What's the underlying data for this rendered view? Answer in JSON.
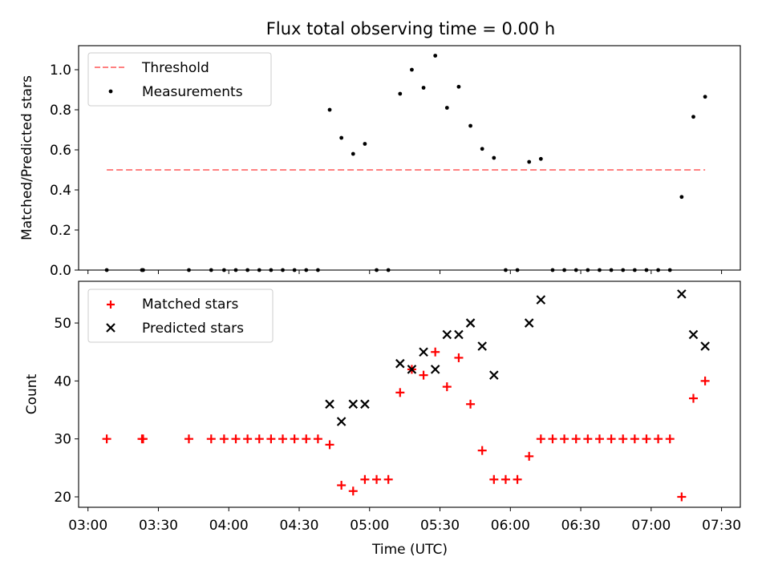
{
  "figure": {
    "title": "Flux total observing time = 0.00 h"
  },
  "chart_data": [
    {
      "type": "scatter",
      "panel": "top",
      "ylabel": "Matched/Predicted stars",
      "xlabel": "",
      "x_unit": "minutes after 03:00 UTC",
      "ylim": [
        0.0,
        1.12
      ],
      "yticks": [
        0.0,
        0.2,
        0.4,
        0.6,
        0.8,
        1.0
      ],
      "ytick_labels": [
        "0.0",
        "0.2",
        "0.4",
        "0.6",
        "0.8",
        "1.0"
      ],
      "legend_position": "upper-left",
      "threshold": {
        "name": "Threshold",
        "value": 0.5,
        "x_range": [
          8,
          263
        ],
        "color": "#ff8080",
        "style": "dashed"
      },
      "series": [
        {
          "name": "Measurements",
          "marker": "dot",
          "color": "#000000",
          "points": [
            [
              8,
              0.0
            ],
            [
              23,
              0.0
            ],
            [
              23.5,
              0.0
            ],
            [
              43,
              0.0
            ],
            [
              52.5,
              0.0
            ],
            [
              58,
              0.0
            ],
            [
              63,
              0.0
            ],
            [
              68,
              0.0
            ],
            [
              73,
              0.0
            ],
            [
              78,
              0.0
            ],
            [
              83,
              0.0
            ],
            [
              88,
              0.0
            ],
            [
              93,
              0.0
            ],
            [
              98,
              0.0
            ],
            [
              103,
              0.8
            ],
            [
              108,
              0.66
            ],
            [
              113,
              0.58
            ],
            [
              118,
              0.63
            ],
            [
              123,
              0.0
            ],
            [
              128,
              0.0
            ],
            [
              133,
              0.88
            ],
            [
              138,
              1.0
            ],
            [
              143,
              0.91
            ],
            [
              148,
              1.07
            ],
            [
              153,
              0.81
            ],
            [
              158,
              0.915
            ],
            [
              163,
              0.72
            ],
            [
              168,
              0.605
            ],
            [
              173,
              0.56
            ],
            [
              178,
              0.0
            ],
            [
              183,
              0.0
            ],
            [
              188,
              0.54
            ],
            [
              193,
              0.555
            ],
            [
              198,
              0.0
            ],
            [
              203,
              0.0
            ],
            [
              208,
              0.0
            ],
            [
              213,
              0.0
            ],
            [
              218,
              0.0
            ],
            [
              223,
              0.0
            ],
            [
              228,
              0.0
            ],
            [
              233,
              0.0
            ],
            [
              238,
              0.0
            ],
            [
              243,
              0.0
            ],
            [
              248,
              0.0
            ],
            [
              253,
              0.365
            ],
            [
              258,
              0.765
            ],
            [
              263,
              0.865
            ]
          ]
        }
      ]
    },
    {
      "type": "scatter",
      "panel": "bottom",
      "ylabel": "Count",
      "xlabel": "Time (UTC)",
      "x_unit": "minutes after 03:00 UTC",
      "xlim": [
        -4,
        278
      ],
      "xticks": [
        0,
        30,
        60,
        90,
        120,
        150,
        180,
        210,
        240,
        270
      ],
      "xtick_labels": [
        "03:00",
        "03:30",
        "04:00",
        "04:30",
        "05:00",
        "05:30",
        "06:00",
        "06:30",
        "07:00",
        "07:30"
      ],
      "ylim": [
        18.2,
        57.2
      ],
      "yticks": [
        20,
        30,
        40,
        50
      ],
      "ytick_labels": [
        "20",
        "30",
        "40",
        "50"
      ],
      "legend_position": "upper-left",
      "series": [
        {
          "name": "Matched stars",
          "marker": "plus",
          "color": "#ff0000",
          "points": [
            [
              8,
              30
            ],
            [
              23,
              30
            ],
            [
              23.5,
              30
            ],
            [
              43,
              30
            ],
            [
              52.5,
              30
            ],
            [
              58,
              30
            ],
            [
              63,
              30
            ],
            [
              68,
              30
            ],
            [
              73,
              30
            ],
            [
              78,
              30
            ],
            [
              83,
              30
            ],
            [
              88,
              30
            ],
            [
              93,
              30
            ],
            [
              98,
              30
            ],
            [
              103,
              29
            ],
            [
              108,
              22
            ],
            [
              113,
              21
            ],
            [
              118,
              23
            ],
            [
              123,
              23
            ],
            [
              128,
              23
            ],
            [
              133,
              38
            ],
            [
              138,
              42
            ],
            [
              143,
              41
            ],
            [
              148,
              45
            ],
            [
              153,
              39
            ],
            [
              158,
              44
            ],
            [
              163,
              36
            ],
            [
              168,
              28
            ],
            [
              173,
              23
            ],
            [
              178,
              23
            ],
            [
              183,
              23
            ],
            [
              188,
              27
            ],
            [
              193,
              30
            ],
            [
              198,
              30
            ],
            [
              203,
              30
            ],
            [
              208,
              30
            ],
            [
              213,
              30
            ],
            [
              218,
              30
            ],
            [
              223,
              30
            ],
            [
              228,
              30
            ],
            [
              233,
              30
            ],
            [
              238,
              30
            ],
            [
              243,
              30
            ],
            [
              248,
              30
            ],
            [
              253,
              20
            ],
            [
              258,
              37
            ],
            [
              263,
              40
            ]
          ]
        },
        {
          "name": "Predicted stars",
          "marker": "x",
          "color": "#000000",
          "points": [
            [
              103,
              36
            ],
            [
              108,
              33
            ],
            [
              113,
              36
            ],
            [
              118,
              36
            ],
            [
              133,
              43
            ],
            [
              138,
              42
            ],
            [
              143,
              45
            ],
            [
              148,
              42
            ],
            [
              153,
              48
            ],
            [
              158,
              48
            ],
            [
              163,
              50
            ],
            [
              168,
              46
            ],
            [
              173,
              41
            ],
            [
              188,
              50
            ],
            [
              193,
              54
            ],
            [
              253,
              55
            ],
            [
              258,
              48
            ],
            [
              263,
              46
            ]
          ]
        }
      ]
    }
  ]
}
